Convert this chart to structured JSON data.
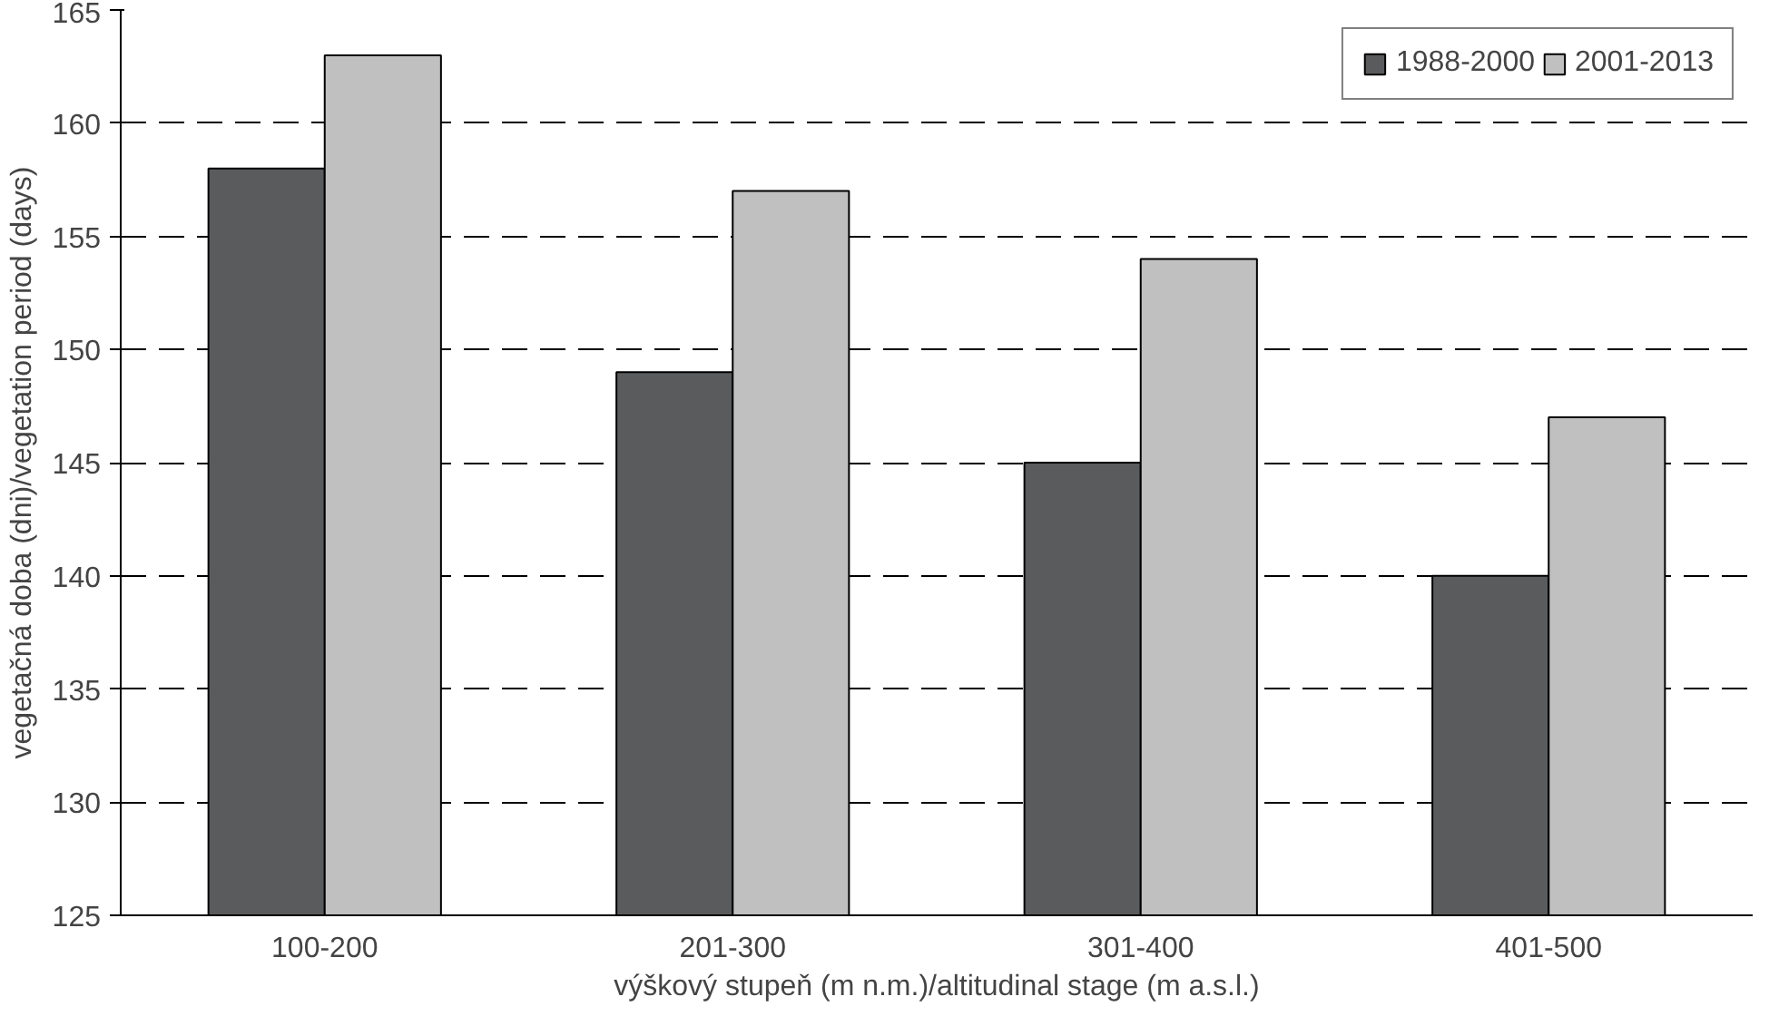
{
  "chart_data": {
    "type": "bar",
    "xlabel": "výškový stupeň (m n.m.)/altitudinal stage (m a.s.l.)",
    "ylabel": "vegetačná doba (dni)/vegetation period (days)",
    "categories": [
      "100-200",
      "201-300",
      "301-400",
      "401-500"
    ],
    "series": [
      {
        "name": "1988-2000",
        "color": "#5a5b5d",
        "values": [
          158,
          149,
          145,
          140
        ]
      },
      {
        "name": "2001-2013",
        "color": "#c0c0c0",
        "values": [
          163,
          157,
          154,
          147
        ]
      }
    ],
    "ylim": [
      125,
      165
    ],
    "yticks": [
      125,
      130,
      135,
      140,
      145,
      150,
      155,
      160,
      165
    ],
    "grid": "y",
    "legend": "top right"
  }
}
